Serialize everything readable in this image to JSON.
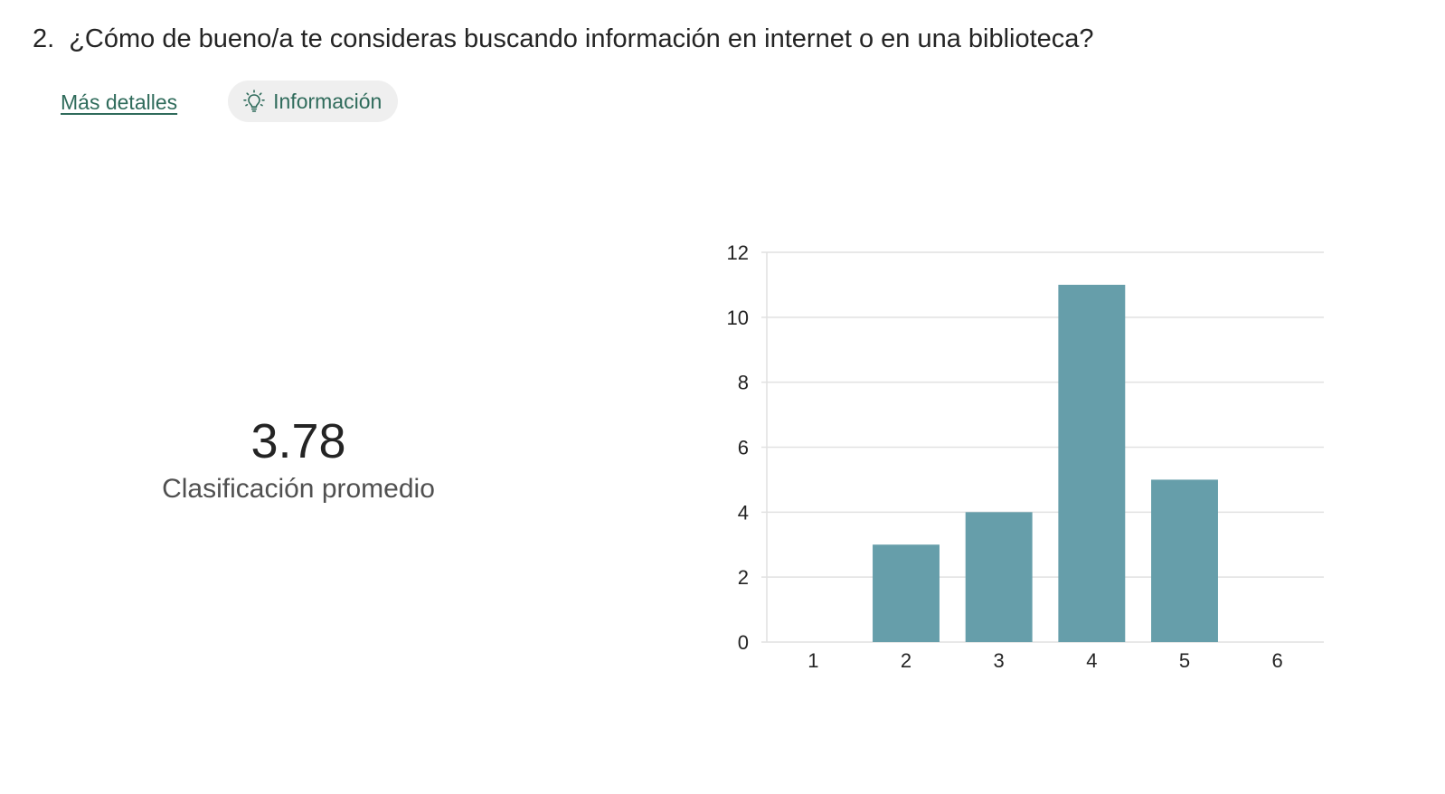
{
  "question": {
    "number": "2.",
    "text": "¿Cómo de bueno/a te consideras buscando información en internet o en una biblioteca?"
  },
  "actions": {
    "details_link": "Más detalles",
    "insights_button": "Información",
    "insights_icon": "lightbulb-icon"
  },
  "summary": {
    "average_value": "3.78",
    "average_label": "Clasificación promedio"
  },
  "colors": {
    "bar": "#669eaa",
    "grid": "#e1e1e1",
    "accent": "#2f6b5b"
  },
  "chart_data": {
    "type": "bar",
    "categories": [
      "1",
      "2",
      "3",
      "4",
      "5",
      "6"
    ],
    "values": [
      0,
      3,
      4,
      11,
      5,
      0
    ],
    "ylim": [
      0,
      12
    ],
    "yticks": [
      0,
      2,
      4,
      6,
      8,
      10,
      12
    ],
    "grid": true,
    "xlabel": "",
    "ylabel": "",
    "title": ""
  }
}
